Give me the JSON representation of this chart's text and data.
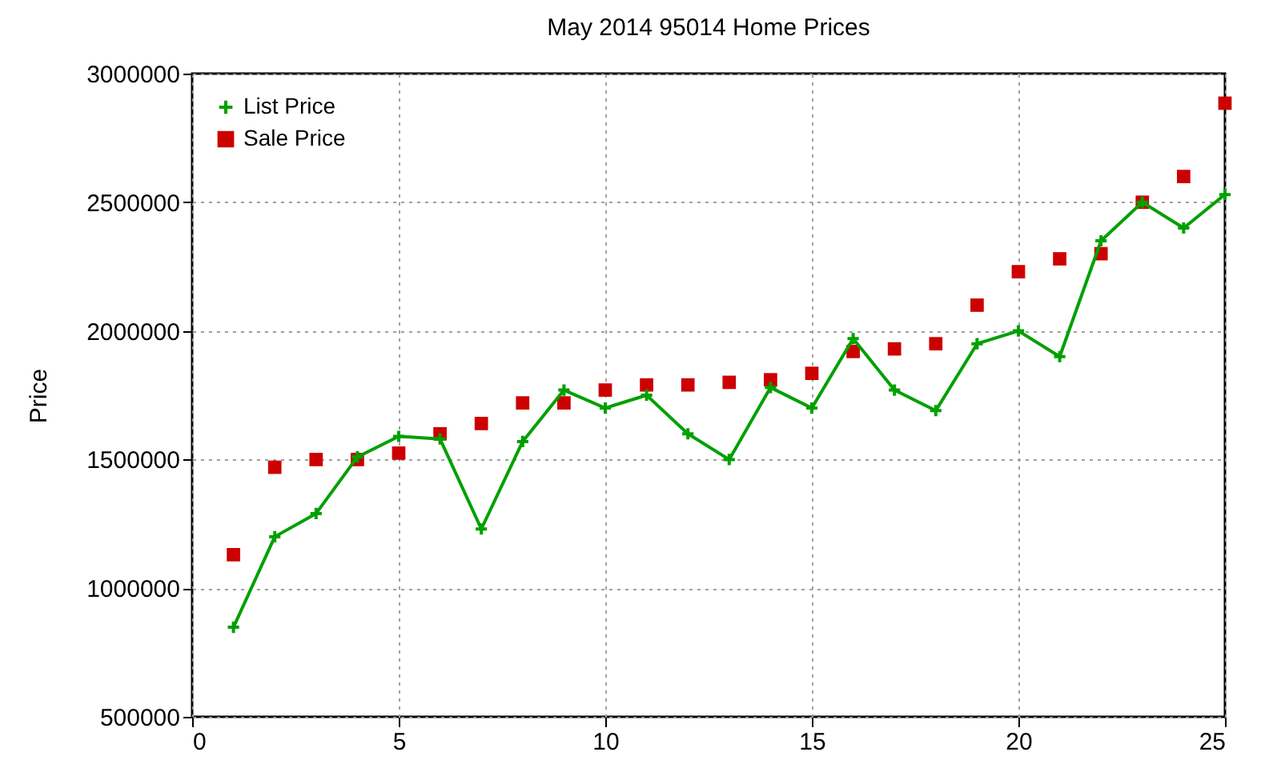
{
  "chart_data": {
    "type": "line",
    "title": "May 2014 95014 Home Prices",
    "ylabel": "Price",
    "x": [
      1,
      2,
      3,
      4,
      5,
      6,
      7,
      8,
      9,
      10,
      11,
      12,
      13,
      14,
      15,
      16,
      17,
      18,
      19,
      20,
      21,
      22,
      23,
      24,
      25
    ],
    "series": [
      {
        "name": "List Price",
        "type": "line",
        "marker": "cross",
        "color": "#00a000",
        "values": [
          848000,
          1200000,
          1290000,
          1510000,
          1590000,
          1580000,
          1230000,
          1570000,
          1770000,
          1700000,
          1750000,
          1600000,
          1500000,
          1780000,
          1700000,
          1970000,
          1770000,
          1690000,
          1950000,
          2000000,
          1900000,
          2350000,
          2500000,
          2400000,
          2530000
        ]
      },
      {
        "name": "Sale Price",
        "type": "scatter",
        "marker": "square",
        "color": "#cc0000",
        "values": [
          1130000,
          1470000,
          1500000,
          1500000,
          1525000,
          1600000,
          1640000,
          1720000,
          1720000,
          1770000,
          1790000,
          1790000,
          1800000,
          1810000,
          1835000,
          1920000,
          1930000,
          1950000,
          2100000,
          2230000,
          2280000,
          2300000,
          2500000,
          2600000,
          2885000
        ]
      }
    ],
    "xlim": [
      0,
      25
    ],
    "xticks": [
      0,
      5,
      10,
      15,
      20,
      25
    ],
    "ylim": [
      500000,
      3000000
    ],
    "yticks": [
      500000,
      1000000,
      1500000,
      2000000,
      2500000,
      3000000
    ],
    "grid": true,
    "legend": "top left"
  }
}
